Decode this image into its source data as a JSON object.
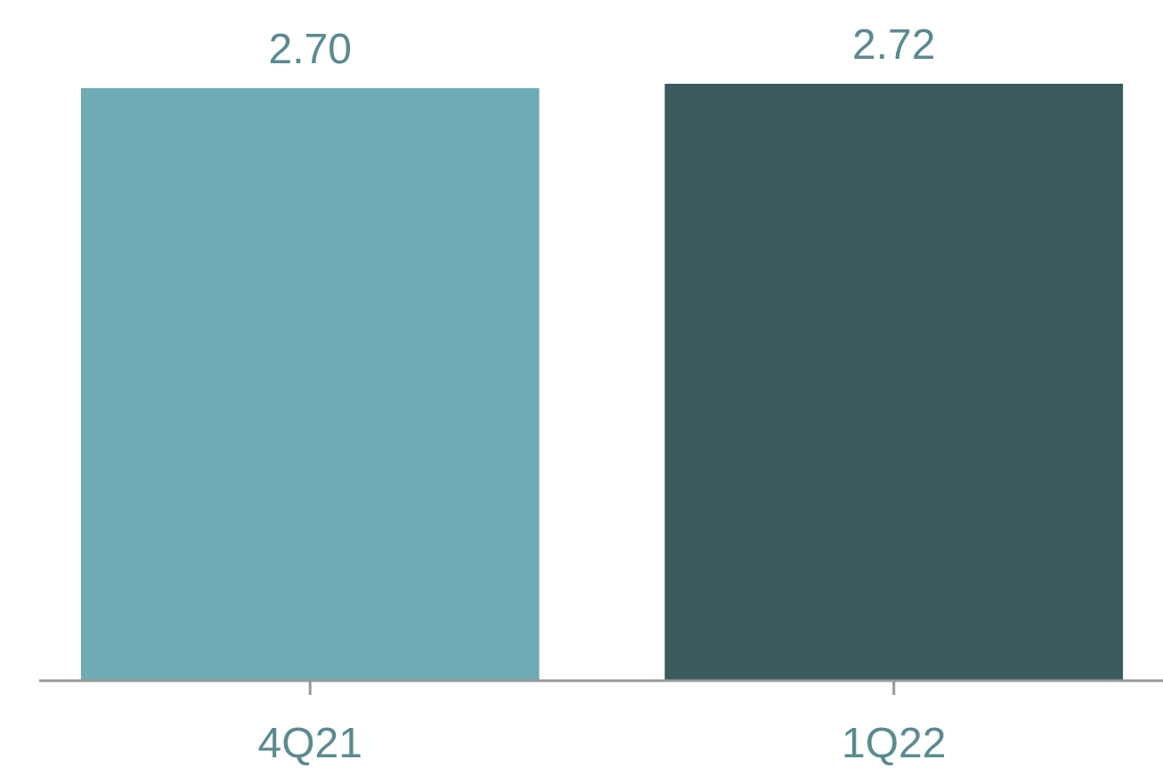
{
  "chart_data": {
    "type": "bar",
    "categories": [
      "4Q21",
      "1Q22"
    ],
    "values": [
      2.7,
      2.72
    ],
    "colors": [
      "#6eabb5",
      "#3b5a5e"
    ],
    "data_labels": true,
    "value_labels": [
      "2.70",
      "2.72"
    ]
  }
}
